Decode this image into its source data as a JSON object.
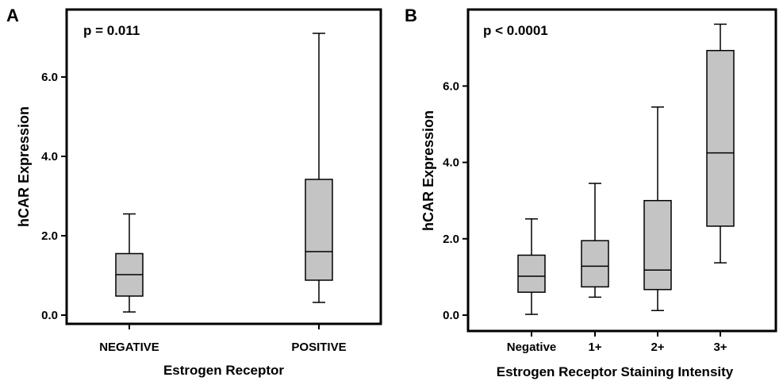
{
  "chart_data": [
    {
      "panel": "A",
      "type": "box",
      "annotation": "p = 0.011",
      "xlabel": "Estrogen Receptor",
      "ylabel": "hCAR Expression",
      "ylim": [
        -0.2,
        7.5
      ],
      "yticks": [
        0.0,
        2.0,
        4.0,
        6.0
      ],
      "ytick_labels": [
        "0.0",
        "2.0",
        "4.0",
        "6.0"
      ],
      "categories": [
        "NEGATIVE",
        "POSITIVE"
      ],
      "boxes": [
        {
          "min": 0.08,
          "q1": 0.48,
          "median": 1.02,
          "q3": 1.55,
          "max": 2.55
        },
        {
          "min": 0.32,
          "q1": 0.88,
          "median": 1.6,
          "q3": 3.42,
          "max": 7.1
        }
      ],
      "fill_color": "#c4c4c4"
    },
    {
      "panel": "B",
      "type": "box",
      "annotation": "p < 0.0001",
      "xlabel": "Estrogen Receptor Staining Intensity",
      "ylabel": "hCAR Expression",
      "ylim": [
        -0.2,
        8.0
      ],
      "yticks": [
        0.0,
        2.0,
        4.0,
        6.0
      ],
      "ytick_labels": [
        "0.0",
        "2.0",
        "4.0",
        "6.0"
      ],
      "categories": [
        "Negative",
        "1+",
        "2+",
        "3+"
      ],
      "boxes": [
        {
          "min": 0.02,
          "q1": 0.6,
          "median": 1.02,
          "q3": 1.57,
          "max": 2.52
        },
        {
          "min": 0.47,
          "q1": 0.74,
          "median": 1.28,
          "q3": 1.95,
          "max": 3.45
        },
        {
          "min": 0.12,
          "q1": 0.67,
          "median": 1.18,
          "q3": 3.0,
          "max": 5.45
        },
        {
          "min": 1.37,
          "q1": 2.33,
          "median": 4.25,
          "q3": 6.93,
          "max": 7.62
        }
      ],
      "fill_color": "#c4c4c4"
    }
  ]
}
